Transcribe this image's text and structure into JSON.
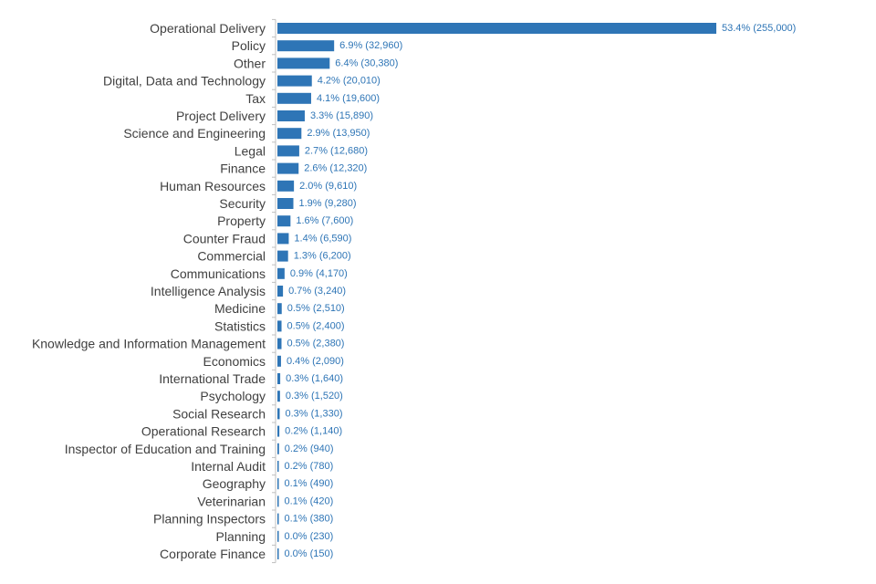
{
  "colors": {
    "bar": "#2e75b6",
    "axis": "#bfbfbf",
    "category_text": "#404040",
    "value_text": "#2e75b6"
  },
  "chart_data": {
    "type": "bar",
    "orientation": "horizontal",
    "title": "",
    "xlabel": "",
    "ylabel": "",
    "xlim": [
      0,
      255000
    ],
    "grid": false,
    "legend": "none",
    "categories": [
      "Operational Delivery",
      "Policy",
      "Other",
      "Digital, Data and Technology",
      "Tax",
      "Project Delivery",
      "Science and Engineering",
      "Legal",
      "Finance",
      "Human Resources",
      "Security",
      "Property",
      "Counter Fraud",
      "Commercial",
      "Communications",
      "Intelligence Analysis",
      "Medicine",
      "Statistics",
      "Knowledge and Information Management",
      "Economics",
      "International Trade",
      "Psychology",
      "Social Research",
      "Operational Research",
      "Inspector of Education and Training",
      "Internal Audit",
      "Geography",
      "Veterinarian",
      "Planning Inspectors",
      "Planning",
      "Corporate Finance"
    ],
    "values": [
      255000,
      32960,
      30380,
      20010,
      19600,
      15890,
      13950,
      12680,
      12320,
      9610,
      9280,
      7600,
      6590,
      6200,
      4170,
      3240,
      2510,
      2400,
      2380,
      2090,
      1640,
      1520,
      1330,
      1140,
      940,
      780,
      490,
      420,
      380,
      230,
      150
    ],
    "data_labels": [
      "53.4% (255,000)",
      "6.9% (32,960)",
      "6.4% (30,380)",
      "4.2% (20,010)",
      "4.1% (19,600)",
      "3.3% (15,890)",
      "2.9% (13,950)",
      "2.7% (12,680)",
      "2.6% (12,320)",
      "2.0% (9,610)",
      "1.9% (9,280)",
      "1.6% (7,600)",
      "1.4% (6,590)",
      "1.3% (6,200)",
      "0.9% (4,170)",
      "0.7% (3,240)",
      "0.5% (2,510)",
      "0.5% (2,400)",
      "0.5% (2,380)",
      "0.4% (2,090)",
      "0.3% (1,640)",
      "0.3% (1,520)",
      "0.3% (1,330)",
      "0.2% (1,140)",
      "0.2% (940)",
      "0.2% (780)",
      "0.1% (490)",
      "0.1% (420)",
      "0.1% (380)",
      "0.0% (230)",
      "0.0% (150)"
    ]
  }
}
